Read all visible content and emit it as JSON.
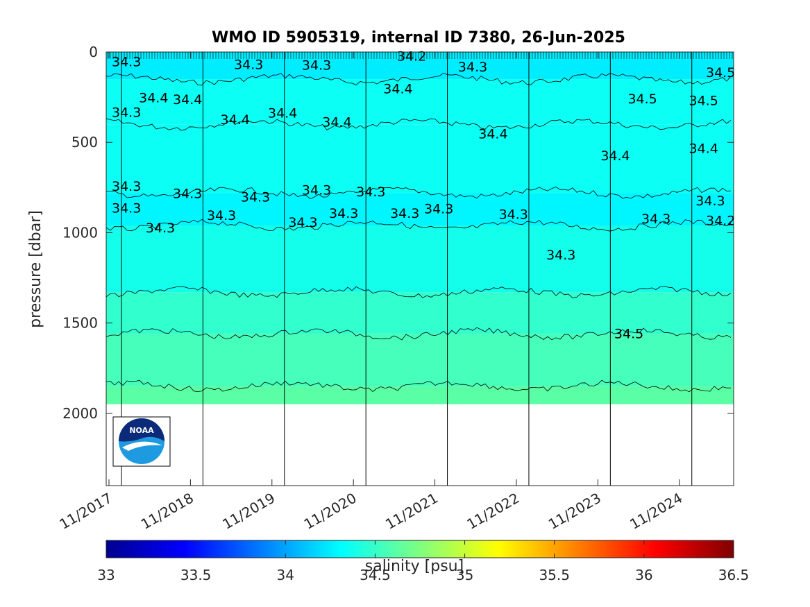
{
  "chart_data": {
    "type": "heatmap",
    "title": "WMO ID 5905319, internal ID 7380, 26-Jun-2025",
    "ylabel": "pressure [dbar]",
    "xlabel": "",
    "y_reversed": true,
    "ylim": [
      0,
      2400
    ],
    "y_ticks": [
      "0",
      "500",
      "1000",
      "1500",
      "2000"
    ],
    "y_tick_values": [
      0,
      500,
      1000,
      1500,
      2000
    ],
    "x_tick_labels": [
      "11/2017",
      "11/2018",
      "11/2019",
      "11/2020",
      "11/2021",
      "11/2022",
      "11/2023",
      "11/2024"
    ],
    "x_range": [
      "11/2017",
      "07/2025"
    ],
    "data_max_pressure": 1950,
    "colorbar": {
      "label": "salinity [psu]",
      "range": [
        33,
        36.5
      ],
      "ticks": [
        "33",
        "33.5",
        "34",
        "34.5",
        "35",
        "35.5",
        "36",
        "36.5"
      ],
      "colormap": "jet"
    },
    "salinity_layers": [
      {
        "from_dbar": 0,
        "to_dbar": 150,
        "salinity": 34.25
      },
      {
        "from_dbar": 150,
        "to_dbar": 400,
        "salinity": 34.35
      },
      {
        "from_dbar": 400,
        "to_dbar": 780,
        "salinity": 34.35
      },
      {
        "from_dbar": 780,
        "to_dbar": 960,
        "salinity": 34.28
      },
      {
        "from_dbar": 960,
        "to_dbar": 1330,
        "salinity": 34.38
      },
      {
        "from_dbar": 1330,
        "to_dbar": 1560,
        "salinity": 34.48
      },
      {
        "from_dbar": 1560,
        "to_dbar": 1850,
        "salinity": 34.55
      },
      {
        "from_dbar": 1850,
        "to_dbar": 1950,
        "salinity": 34.62
      }
    ],
    "contour_labels": [
      {
        "text": "34.3",
        "x": "11/2017",
        "y": 40
      },
      {
        "text": "34.3",
        "x": "05/2019",
        "y": 55
      },
      {
        "text": "34.3",
        "x": "03/2020",
        "y": 60
      },
      {
        "text": "34.2",
        "x": "05/2021",
        "y": 10
      },
      {
        "text": "34.3",
        "x": "02/2022",
        "y": 70
      },
      {
        "text": "34.4",
        "x": "03/2018",
        "y": 240
      },
      {
        "text": "34.4",
        "x": "08/2018",
        "y": 250
      },
      {
        "text": "34.3",
        "x": "11/2017",
        "y": 320
      },
      {
        "text": "34.4",
        "x": "03/2019",
        "y": 360
      },
      {
        "text": "34.4",
        "x": "10/2019",
        "y": 325
      },
      {
        "text": "34.4",
        "x": "06/2020",
        "y": 375
      },
      {
        "text": "34.4",
        "x": "03/2021",
        "y": 190
      },
      {
        "text": "34.4",
        "x": "05/2022",
        "y": 440
      },
      {
        "text": "34.4",
        "x": "11/2023",
        "y": 560
      },
      {
        "text": "34.4",
        "x": "12/2024",
        "y": 520
      },
      {
        "text": "34.5",
        "x": "03/2024",
        "y": 245
      },
      {
        "text": "34.5",
        "x": "12/2024",
        "y": 255
      },
      {
        "text": "34.5",
        "x": "07/2025",
        "y": 100
      },
      {
        "text": "34.3",
        "x": "11/2017",
        "y": 730
      },
      {
        "text": "34.3",
        "x": "08/2018",
        "y": 770
      },
      {
        "text": "34.3",
        "x": "06/2019",
        "y": 790
      },
      {
        "text": "34.3",
        "x": "03/2020",
        "y": 750
      },
      {
        "text": "34.3",
        "x": "11/2020",
        "y": 760
      },
      {
        "text": "34.3",
        "x": "09/2021",
        "y": 855
      },
      {
        "text": "34.3",
        "x": "04/2021",
        "y": 880
      },
      {
        "text": "34.3",
        "x": "07/2020",
        "y": 880
      },
      {
        "text": "34.3",
        "x": "11/2017",
        "y": 850
      },
      {
        "text": "34.3",
        "x": "04/2018",
        "y": 960
      },
      {
        "text": "34.3",
        "x": "01/2019",
        "y": 890
      },
      {
        "text": "34.3",
        "x": "01/2020",
        "y": 930
      },
      {
        "text": "34.3",
        "x": "03/2023",
        "y": 1110
      },
      {
        "text": "34.3",
        "x": "05/2024",
        "y": 910
      },
      {
        "text": "34.3",
        "x": "01/2025",
        "y": 810
      },
      {
        "text": "34.3",
        "x": "08/2022",
        "y": 885
      },
      {
        "text": "34.2",
        "x": "04/2025",
        "y": 920
      },
      {
        "text": "34.5",
        "x": "01/2024",
        "y": 1545
      }
    ]
  },
  "logo": {
    "text": "NOAA"
  }
}
